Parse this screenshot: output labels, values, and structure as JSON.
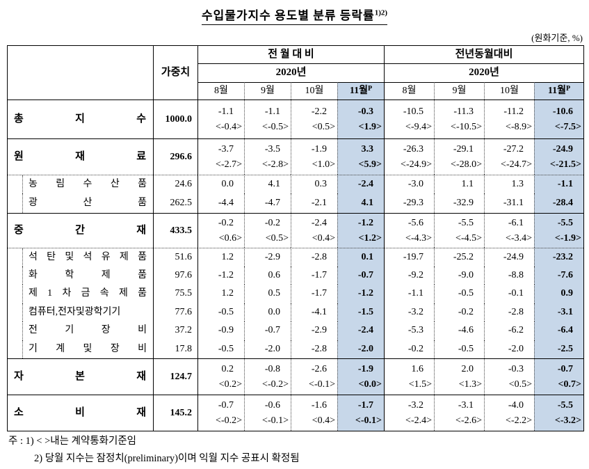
{
  "title": {
    "text": "수입물가지수 용도별 분류 등락률",
    "sup": "1)2)"
  },
  "unit_note": "(원화기준, %)",
  "table": {
    "weight_header": "가중치",
    "col_groups": [
      {
        "label": "전 월 대 비",
        "year": "2020년"
      },
      {
        "label": "전년동월대비",
        "year": "2020년"
      }
    ],
    "months": [
      "8월",
      "9월",
      "10월",
      "11월"
    ],
    "prelim_sup": "P",
    "highlight_color": "#c7d7e9",
    "rows": [
      {
        "label": "총 지 수",
        "type": "main",
        "weight": "1000.0",
        "mom": [
          "-1.1",
          "-1.1",
          "-2.2",
          "-0.3"
        ],
        "mom_fc": [
          "<-0.4>",
          "<-0.5>",
          "<0.5>",
          "<1.9>"
        ],
        "yoy": [
          "-10.5",
          "-11.3",
          "-11.2",
          "-10.6"
        ],
        "yoy_fc": [
          "<-9.4>",
          "<-10.5>",
          "<-8.9>",
          "<-7.5>"
        ]
      },
      {
        "label": "원 재 료",
        "type": "main",
        "weight": "296.6",
        "mom": [
          "-3.7",
          "-3.5",
          "-1.9",
          "3.3"
        ],
        "mom_fc": [
          "<-2.7>",
          "<-2.8>",
          "<1.0>",
          "<5.9>"
        ],
        "yoy": [
          "-26.3",
          "-29.1",
          "-27.2",
          "-24.9"
        ],
        "yoy_fc": [
          "<-24.9>",
          "<-28.0>",
          "<-24.7>",
          "<-21.5>"
        ]
      },
      {
        "label": "농 림 수 산 품",
        "type": "sub",
        "weight": "24.6",
        "mom": [
          "0.0",
          "4.1",
          "0.3",
          "-2.4"
        ],
        "mom_fc": null,
        "yoy": [
          "-3.0",
          "1.1",
          "1.3",
          "-1.1"
        ],
        "yoy_fc": null
      },
      {
        "label": "광 산 품",
        "type": "sub",
        "weight": "262.5",
        "mom": [
          "-4.4",
          "-4.7",
          "-2.1",
          "4.1"
        ],
        "mom_fc": null,
        "yoy": [
          "-29.3",
          "-32.9",
          "-31.1",
          "-28.4"
        ],
        "yoy_fc": null
      },
      {
        "label": "중 간 재",
        "type": "main",
        "weight": "433.5",
        "mom": [
          "-0.2",
          "-0.2",
          "-2.4",
          "-1.2"
        ],
        "mom_fc": [
          "<0.6>",
          "<0.5>",
          "<0.4>",
          "<1.2>"
        ],
        "yoy": [
          "-5.6",
          "-5.5",
          "-6.1",
          "-5.5"
        ],
        "yoy_fc": [
          "<-4.3>",
          "<-4.5>",
          "<-3.4>",
          "<-1.9>"
        ]
      },
      {
        "label": "석 탄 및 석 유 제 품",
        "type": "sub",
        "weight": "51.6",
        "mom": [
          "1.2",
          "-2.9",
          "-2.8",
          "0.1"
        ],
        "mom_fc": null,
        "yoy": [
          "-19.7",
          "-25.2",
          "-24.9",
          "-23.2"
        ],
        "yoy_fc": null
      },
      {
        "label": "화 학 제 품",
        "type": "sub",
        "weight": "97.6",
        "mom": [
          "-1.2",
          "0.6",
          "-1.7",
          "-0.7"
        ],
        "mom_fc": null,
        "yoy": [
          "-9.2",
          "-9.0",
          "-8.8",
          "-7.6"
        ],
        "yoy_fc": null
      },
      {
        "label": "제 1 차 금 속 제 품",
        "type": "sub",
        "weight": "75.5",
        "mom": [
          "1.2",
          "0.5",
          "-1.7",
          "-1.2"
        ],
        "mom_fc": null,
        "yoy": [
          "-1.1",
          "-0.5",
          "-0.1",
          "0.9"
        ],
        "yoy_fc": null
      },
      {
        "label": "컴퓨터,전자및광학기기",
        "type": "sub",
        "weight": "77.6",
        "mom": [
          "-0.5",
          "0.0",
          "-4.1",
          "-1.5"
        ],
        "mom_fc": null,
        "yoy": [
          "-3.2",
          "-0.2",
          "-2.8",
          "-3.1"
        ],
        "yoy_fc": null
      },
      {
        "label": "전 기 장 비",
        "type": "sub",
        "weight": "37.2",
        "mom": [
          "-0.9",
          "-0.7",
          "-2.9",
          "-2.4"
        ],
        "mom_fc": null,
        "yoy": [
          "-5.3",
          "-4.6",
          "-6.2",
          "-6.4"
        ],
        "yoy_fc": null
      },
      {
        "label": "기 계 및 장 비",
        "type": "sub",
        "weight": "17.8",
        "mom": [
          "-0.5",
          "-2.0",
          "-2.8",
          "-2.0"
        ],
        "mom_fc": null,
        "yoy": [
          "-0.2",
          "-0.5",
          "-2.0",
          "-2.5"
        ],
        "yoy_fc": null
      },
      {
        "label": "자 본 재",
        "type": "main",
        "weight": "124.7",
        "mom": [
          "0.2",
          "-0.8",
          "-2.6",
          "-1.9"
        ],
        "mom_fc": [
          "<0.2>",
          "<-0.2>",
          "<-0.1>",
          "<0.0>"
        ],
        "yoy": [
          "1.6",
          "2.0",
          "-0.3",
          "-0.7"
        ],
        "yoy_fc": [
          "<1.5>",
          "<1.3>",
          "<0.5>",
          "<0.7>"
        ]
      },
      {
        "label": "소 비 재",
        "type": "main",
        "weight": "145.2",
        "mom": [
          "-0.7",
          "-0.6",
          "-1.6",
          "-1.7"
        ],
        "mom_fc": [
          "<-0.2>",
          "<-0.1>",
          "<0.4>",
          "<-0.1>"
        ],
        "yoy": [
          "-3.2",
          "-3.1",
          "-4.0",
          "-5.5"
        ],
        "yoy_fc": [
          "<-2.4>",
          "<-2.6>",
          "<-2.2>",
          "<-3.2>"
        ]
      }
    ]
  },
  "notes": {
    "prefix": "주 :",
    "note1": "1) < >내는 계약통화기준임",
    "note2": "2) 당월 지수는 잠정치(preliminary)이며 익월 지수 공표시 확정됨"
  }
}
